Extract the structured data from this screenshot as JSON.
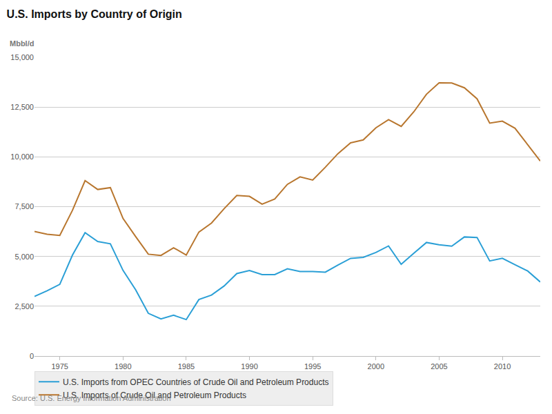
{
  "chart_data": {
    "type": "line",
    "title": "U.S. Imports by Country of Origin",
    "ylabel": "Mbbl/d",
    "annotations": [
      "Source: U.S. Energy Information Administration"
    ],
    "x": [
      1973,
      1974,
      1975,
      1976,
      1977,
      1978,
      1979,
      1980,
      1981,
      1982,
      1983,
      1984,
      1985,
      1986,
      1987,
      1988,
      1989,
      1990,
      1991,
      1992,
      1993,
      1994,
      1995,
      1996,
      1997,
      1998,
      1999,
      2000,
      2001,
      2002,
      2003,
      2004,
      2005,
      2006,
      2007,
      2008,
      2009,
      2010,
      2011,
      2012,
      2013
    ],
    "series": [
      {
        "name": "U.S. Imports from OPEC Countries of Crude Oil and Petroleum Products",
        "color": "#2a9fd6",
        "values": [
          2993,
          3280,
          3601,
          5066,
          6193,
          5751,
          5637,
          4300,
          3323,
          2146,
          1862,
          2049,
          1830,
          2837,
          3060,
          3520,
          4140,
          4296,
          4092,
          4092,
          4380,
          4247,
          4247,
          4211,
          4569,
          4905,
          4953,
          5203,
          5528,
          4605,
          5162,
          5701,
          5587,
          5517,
          5980,
          5954,
          4776,
          4906,
          4589,
          4271,
          3720
        ]
      },
      {
        "name": "U.S. Imports of Crude Oil and Petroleum Products",
        "color": "#b8762e",
        "values": [
          6256,
          6112,
          6056,
          7313,
          8807,
          8363,
          8456,
          6909,
          5996,
          5113,
          5051,
          5437,
          5067,
          6224,
          6678,
          7402,
          8061,
          8018,
          7627,
          7888,
          8620,
          8996,
          8835,
          9478,
          10162,
          10708,
          10852,
          11459,
          11871,
          11530,
          12264,
          13145,
          13714,
          13707,
          13468,
          12915,
          11691,
          11793,
          11436,
          10598,
          9794
        ]
      }
    ],
    "xlim": [
      1973,
      2013
    ],
    "xticks": [
      1975,
      1980,
      1985,
      1990,
      1995,
      2000,
      2005,
      2010
    ],
    "ylim": [
      0,
      15000
    ],
    "yticks": [
      0,
      {
        "value": 2500,
        "label": "2,500"
      },
      {
        "value": 5000,
        "label": "5,000"
      },
      {
        "value": 7500,
        "label": "7,500"
      },
      {
        "value": 10000,
        "label": "10,000"
      },
      {
        "value": 12500,
        "label": "12,500"
      },
      {
        "value": 15000,
        "label": "15,000"
      }
    ],
    "grid": true,
    "legend": "bottom"
  }
}
